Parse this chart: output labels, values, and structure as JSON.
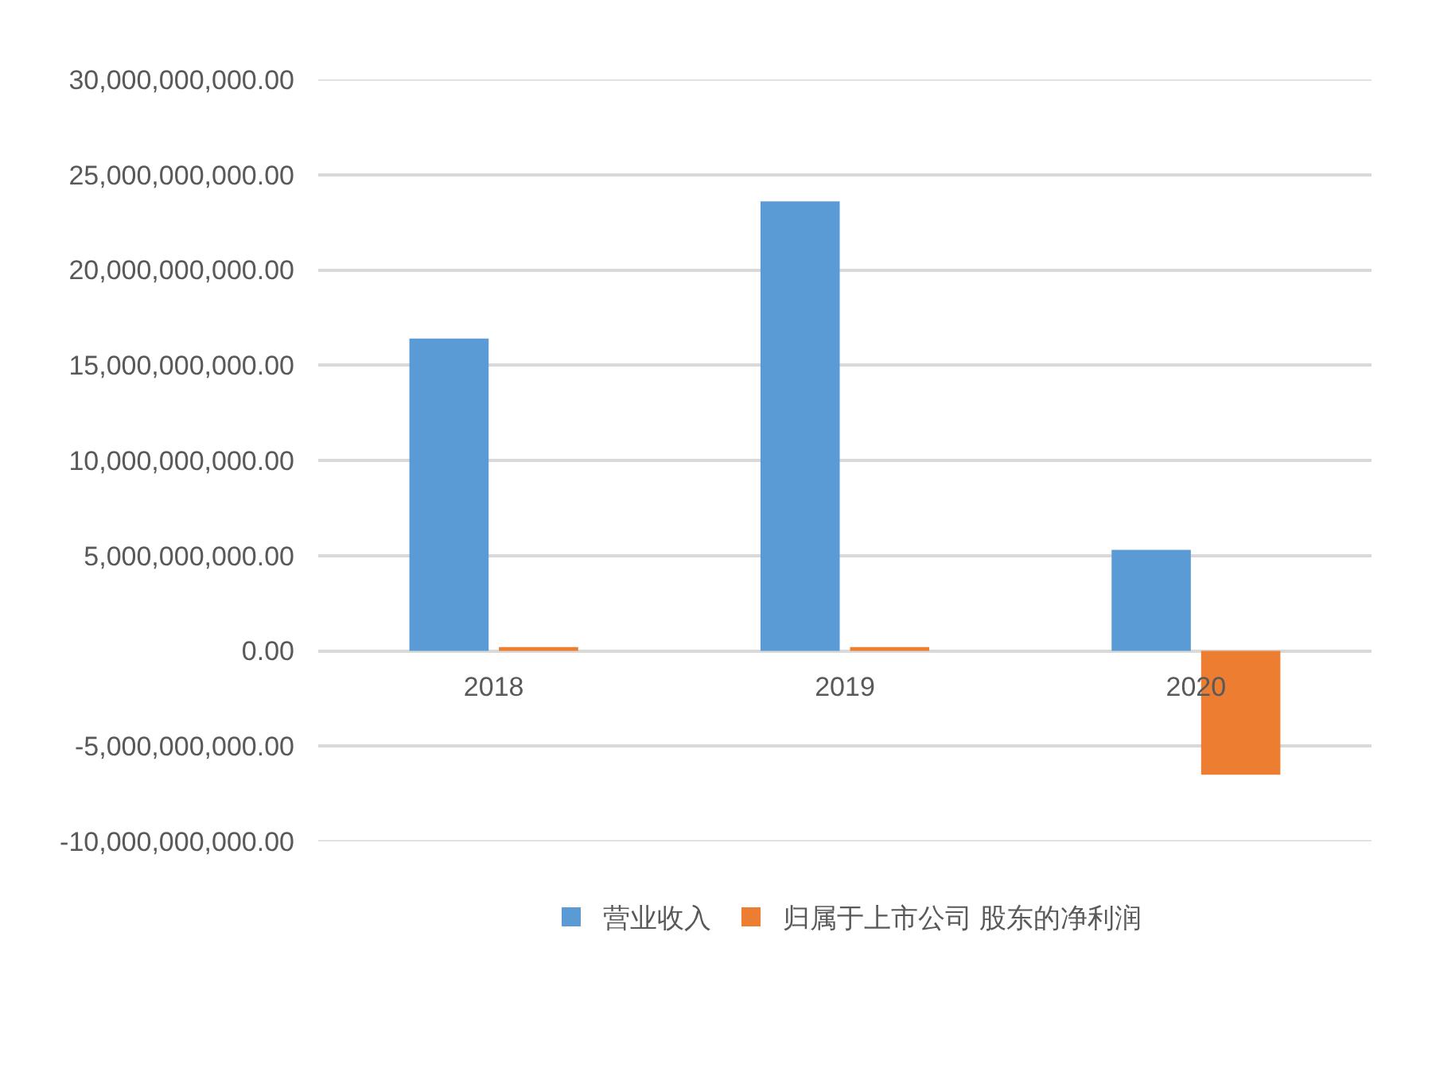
{
  "chart_data": {
    "type": "bar",
    "categories": [
      "2018",
      "2019",
      "2020"
    ],
    "series": [
      {
        "name": "营业收入",
        "color": "#5b9bd5",
        "values": [
          16400000000,
          23600000000,
          5300000000
        ]
      },
      {
        "name": "归属于上市公司 股东的净利润",
        "color": "#ed7d31",
        "values": [
          200000000,
          200000000,
          -6500000000
        ]
      }
    ],
    "ylim": [
      -10000000000,
      30000000000
    ],
    "yticks": [
      {
        "value": -10000000000,
        "label": "-10,000,000,000.00"
      },
      {
        "value": -5000000000,
        "label": "-5,000,000,000.00"
      },
      {
        "value": 0,
        "label": "0.00"
      },
      {
        "value": 5000000000,
        "label": "5,000,000,000.00"
      },
      {
        "value": 10000000000,
        "label": "10,000,000,000.00"
      },
      {
        "value": 15000000000,
        "label": "15,000,000,000.00"
      },
      {
        "value": 20000000000,
        "label": "20,000,000,000.00"
      },
      {
        "value": 25000000000,
        "label": "25,000,000,000.00"
      },
      {
        "value": 30000000000,
        "label": "30,000,000,000.00"
      }
    ],
    "grid": "y",
    "legend": "bottom"
  }
}
